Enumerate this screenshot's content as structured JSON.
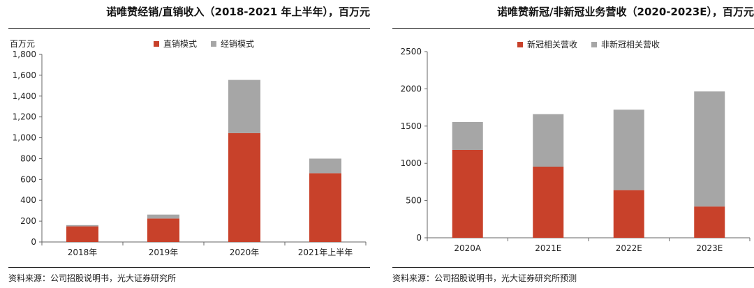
{
  "chart_data": [
    {
      "type": "bar",
      "stacked": true,
      "title": "诺唯赞经销/直销收入（2018-2021 年上半年），百万元",
      "ylabel": "百万元",
      "xlabel": "",
      "categories": [
        "2018年",
        "2019年",
        "2020年",
        "2021年上半年"
      ],
      "series": [
        {
          "name": "直销模式",
          "color": "#c8412a",
          "values": [
            150,
            225,
            1045,
            660
          ]
        },
        {
          "name": "经销模式",
          "color": "#a6a6a6",
          "values": [
            12,
            38,
            510,
            140
          ]
        }
      ],
      "ylim": [
        0,
        1800
      ],
      "yticks": [
        "0",
        "200",
        "400",
        "600",
        "800",
        "1,000",
        "1,200",
        "1,400",
        "1,600",
        "1,800"
      ],
      "legend": "top-center",
      "grid": false,
      "source": "资料来源：公司招股说明书，光大证券研究所"
    },
    {
      "type": "bar",
      "stacked": true,
      "title": "诺唯赞新冠/非新冠业务营收（2020-2023E），百万元",
      "ylabel": "",
      "xlabel": "",
      "categories": [
        "2020A",
        "2021E",
        "2022E",
        "2023E"
      ],
      "series": [
        {
          "name": "新冠相关营收",
          "color": "#c8412a",
          "values": [
            1180,
            955,
            640,
            420
          ]
        },
        {
          "name": "非新冠相关营收",
          "color": "#a6a6a6",
          "values": [
            375,
            705,
            1080,
            1545
          ]
        }
      ],
      "ylim": [
        0,
        2500
      ],
      "yticks": [
        "0",
        "500",
        "1000",
        "1500",
        "2000",
        "2500"
      ],
      "legend": "top-center",
      "grid": false,
      "source": "资料来源：公司招股说明书，光大证券研究所预测"
    }
  ]
}
